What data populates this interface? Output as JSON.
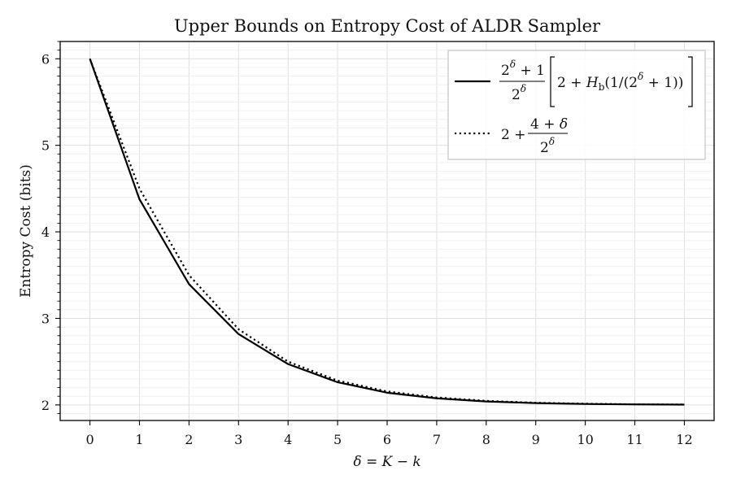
{
  "chart_data": {
    "type": "line",
    "title": "Upper Bounds on Entropy Cost of ALDR Sampler",
    "xlabel": "δ = K − k",
    "ylabel": "Entropy Cost (bits)",
    "x": [
      0,
      1,
      2,
      3,
      4,
      5,
      6,
      7,
      8,
      9,
      10,
      11,
      12
    ],
    "xlim": [
      -0.6,
      12.6
    ],
    "ylim": [
      1.82,
      6.2
    ],
    "xticks": [
      "0",
      "1",
      "2",
      "3",
      "4",
      "5",
      "6",
      "7",
      "8",
      "9",
      "10",
      "11",
      "12"
    ],
    "yticks": [
      "2",
      "3",
      "4",
      "5",
      "6"
    ],
    "grid": true,
    "legend_position": "top-right",
    "series": [
      {
        "name": "(2^δ + 1)/2^δ [2 + H_b(1/(2^δ + 1))]",
        "style": "solid",
        "color": "#000000",
        "values": [
          6.0,
          4.377,
          3.396,
          2.819,
          2.472,
          2.262,
          2.141,
          2.076,
          2.04,
          2.021,
          2.011,
          2.006,
          2.003
        ]
      },
      {
        "name": "2 + (4 + δ)/2^δ",
        "style": "dotted",
        "color": "#000000",
        "values": [
          6.0,
          4.5,
          3.5,
          2.875,
          2.5,
          2.281,
          2.156,
          2.086,
          2.047,
          2.025,
          2.014,
          2.007,
          2.004
        ]
      }
    ]
  }
}
